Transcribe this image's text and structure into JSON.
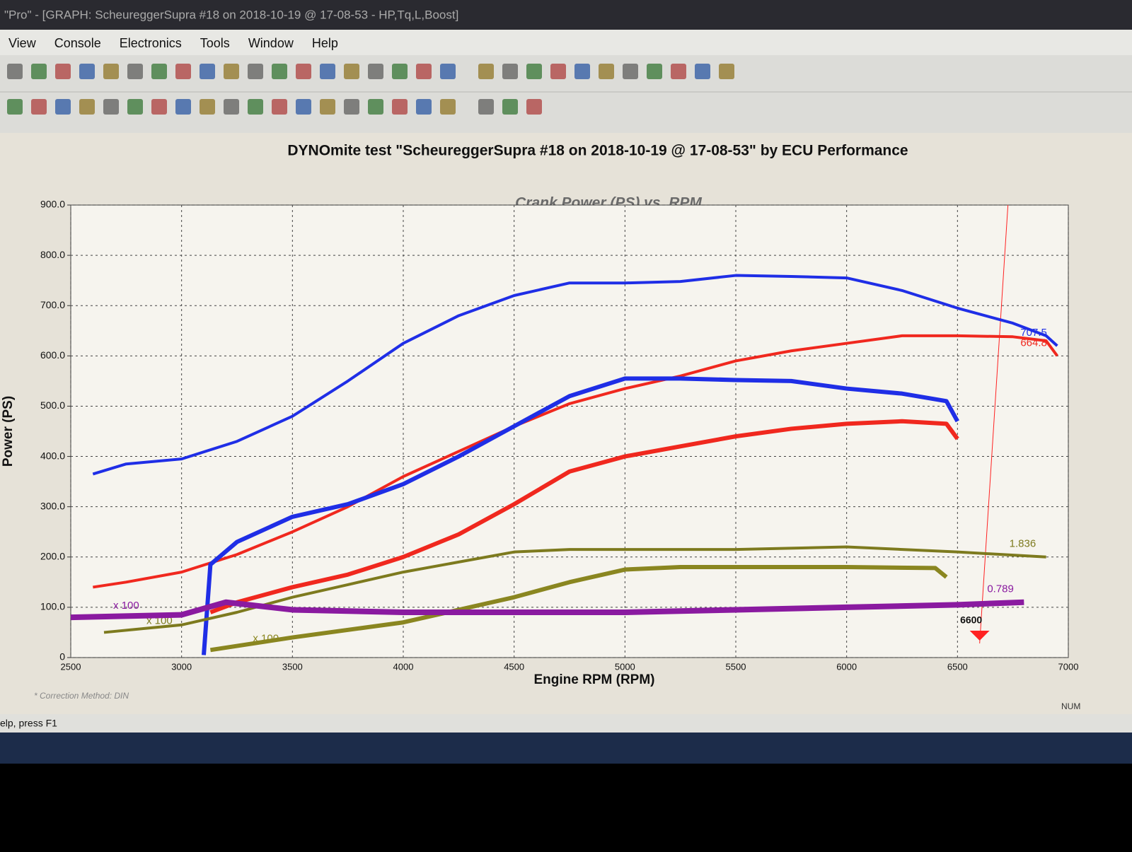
{
  "window": {
    "title": "\"Pro\" - [GRAPH: ScheureggerSupra #18 on 2018-10-19 @ 17-08-53 - HP,Tq,L,Boost]"
  },
  "menu": [
    "View",
    "Console",
    "Electronics",
    "Tools",
    "Window",
    "Help"
  ],
  "status": {
    "hint": "elp, press F1",
    "num": "NUM"
  },
  "chart_data": {
    "type": "line",
    "title": "DYNOmite test \"ScheureggerSupra #18 on 2018-10-19 @ 17-08-53\" by ECU Performance",
    "subtitle": "Crank Power (PS) vs. RPM",
    "x_label": "Engine RPM (RPM)",
    "y_label": "Power (PS)",
    "note": "* Correction Method: DIN",
    "xlim": [
      2500,
      7000
    ],
    "xticks": [
      2500,
      3000,
      3500,
      4000,
      4500,
      5000,
      5500,
      6000,
      6500,
      7000
    ],
    "ylim": [
      0,
      900
    ],
    "yticks": [
      0,
      {
        "value": 100,
        "label": "100.0"
      },
      {
        "value": 200,
        "label": "200.0"
      },
      {
        "value": 300,
        "label": "300.0"
      },
      {
        "value": 400,
        "label": "400.0"
      },
      {
        "value": 500,
        "label": "500.0"
      },
      {
        "value": 600,
        "label": "600.0"
      },
      {
        "value": 700,
        "label": "700.0"
      },
      {
        "value": 800,
        "label": "800.0"
      },
      {
        "value": 900,
        "label": "900.0"
      }
    ],
    "grid": true,
    "cursor_x": 6600,
    "series": [
      {
        "color": "#1f2ee6",
        "line_width": 4,
        "end_label": "707.5",
        "x": [
          2600,
          2750,
          3000,
          3250,
          3500,
          3750,
          4000,
          4250,
          4500,
          4750,
          5000,
          5250,
          5500,
          5750,
          6000,
          6250,
          6500,
          6750,
          6900,
          6950
        ],
        "values": [
          365,
          385,
          395,
          430,
          480,
          550,
          625,
          680,
          720,
          745,
          745,
          748,
          760,
          758,
          755,
          730,
          695,
          665,
          640,
          620
        ]
      },
      {
        "color": "#f0281e",
        "line_width": 4,
        "end_label": "664.8",
        "x": [
          2600,
          2750,
          3000,
          3250,
          3500,
          3750,
          4000,
          4250,
          4500,
          4750,
          5000,
          5250,
          5500,
          5750,
          6000,
          6250,
          6500,
          6750,
          6900,
          6950
        ],
        "values": [
          140,
          150,
          170,
          205,
          250,
          300,
          360,
          410,
          460,
          505,
          535,
          560,
          590,
          610,
          625,
          640,
          640,
          638,
          630,
          600
        ]
      },
      {
        "color": "#1f2ee6",
        "line_width": 6,
        "x": [
          3100,
          3130,
          3250,
          3500,
          3750,
          4000,
          4250,
          4500,
          4750,
          5000,
          5250,
          5500,
          5750,
          6000,
          6250,
          6450,
          6500
        ],
        "values": [
          5,
          185,
          230,
          280,
          305,
          345,
          400,
          460,
          520,
          555,
          555,
          552,
          550,
          535,
          525,
          510,
          470
        ]
      },
      {
        "color": "#f0281e",
        "line_width": 6,
        "x": [
          3130,
          3250,
          3500,
          3750,
          4000,
          4250,
          4500,
          4750,
          5000,
          5250,
          5500,
          5750,
          6000,
          6250,
          6450,
          6500
        ],
        "values": [
          90,
          110,
          140,
          165,
          200,
          245,
          305,
          370,
          400,
          420,
          440,
          455,
          465,
          470,
          465,
          435
        ]
      },
      {
        "color": "#7d7a1e",
        "line_width": 4,
        "tag": "x 100",
        "end_label": "1.836",
        "x": [
          2650,
          3000,
          3250,
          3500,
          3750,
          4000,
          4250,
          4500,
          4750,
          5000,
          5500,
          6000,
          6500,
          6900
        ],
        "values": [
          50,
          65,
          90,
          120,
          145,
          170,
          190,
          210,
          215,
          215,
          215,
          220,
          210,
          200
        ]
      },
      {
        "color": "#8a8620",
        "line_width": 6,
        "tag": "x 100",
        "x": [
          3130,
          3500,
          4000,
          4500,
          4750,
          5000,
          5250,
          5500,
          6000,
          6400,
          6450
        ],
        "values": [
          15,
          40,
          70,
          120,
          150,
          175,
          180,
          180,
          180,
          178,
          160
        ]
      },
      {
        "color": "#8a1aa0",
        "line_width": 8,
        "tag": "x 100",
        "end_label": "0.789",
        "x": [
          2500,
          3000,
          3200,
          3500,
          4000,
          4500,
          5000,
          5500,
          6000,
          6500,
          6800
        ],
        "values": [
          80,
          85,
          110,
          95,
          90,
          90,
          90,
          95,
          100,
          105,
          110
        ]
      }
    ]
  }
}
